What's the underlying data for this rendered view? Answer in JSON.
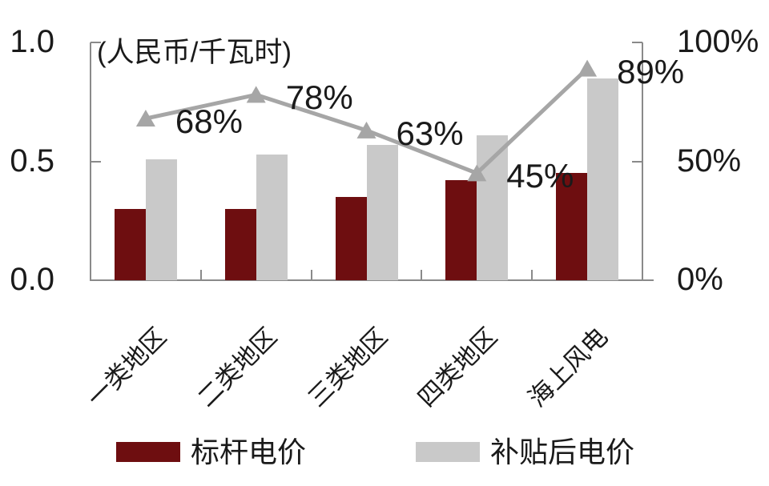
{
  "chart_data": {
    "type": "bar",
    "title": "",
    "categories": [
      "一类地区",
      "二类地区",
      "三类地区",
      "四类地区",
      "海上风电"
    ],
    "series": [
      {
        "name": "标杆电价",
        "type": "bar",
        "axis": "left",
        "color": "#6E0E10",
        "values": [
          0.3,
          0.3,
          0.35,
          0.42,
          0.45
        ]
      },
      {
        "name": "补贴后电价",
        "type": "bar",
        "axis": "left",
        "color": "#C9C9C9",
        "values": [
          0.51,
          0.53,
          0.57,
          0.61,
          0.85
        ]
      },
      {
        "name": "",
        "type": "line",
        "axis": "right",
        "color": "#A6A6A6",
        "marker": "triangle-up",
        "values": [
          68,
          78,
          63,
          45,
          89
        ],
        "labels": [
          "68%",
          "78%",
          "63%",
          "45%",
          "89%"
        ]
      }
    ],
    "left_axis": {
      "unit": "(人民币/千瓦时)",
      "min": 0,
      "max": 1.0,
      "ticks": [
        {
          "label": "1.0",
          "value": 1.0
        },
        {
          "label": "0.5",
          "value": 0.5
        },
        {
          "label": "0.0",
          "value": 0.0
        }
      ]
    },
    "right_axis": {
      "min": 0,
      "max": 100,
      "ticks": [
        {
          "label": "100%",
          "value": 100
        },
        {
          "label": "50%",
          "value": 50
        },
        {
          "label": "0%",
          "value": 0
        }
      ]
    },
    "legend": [
      {
        "label": "标杆电价",
        "color": "#6E0E10"
      },
      {
        "label": "补贴后电价",
        "color": "#C9C9C9"
      }
    ],
    "grid": false,
    "legend_position": "bottom"
  },
  "colors": {
    "bar_red": "#6E0E10",
    "bar_gray": "#C9C9C9",
    "line_gray": "#A6A6A6",
    "axis": "#8A8A8A",
    "text": "#1A1A1A",
    "background": "#FFFFFF"
  }
}
